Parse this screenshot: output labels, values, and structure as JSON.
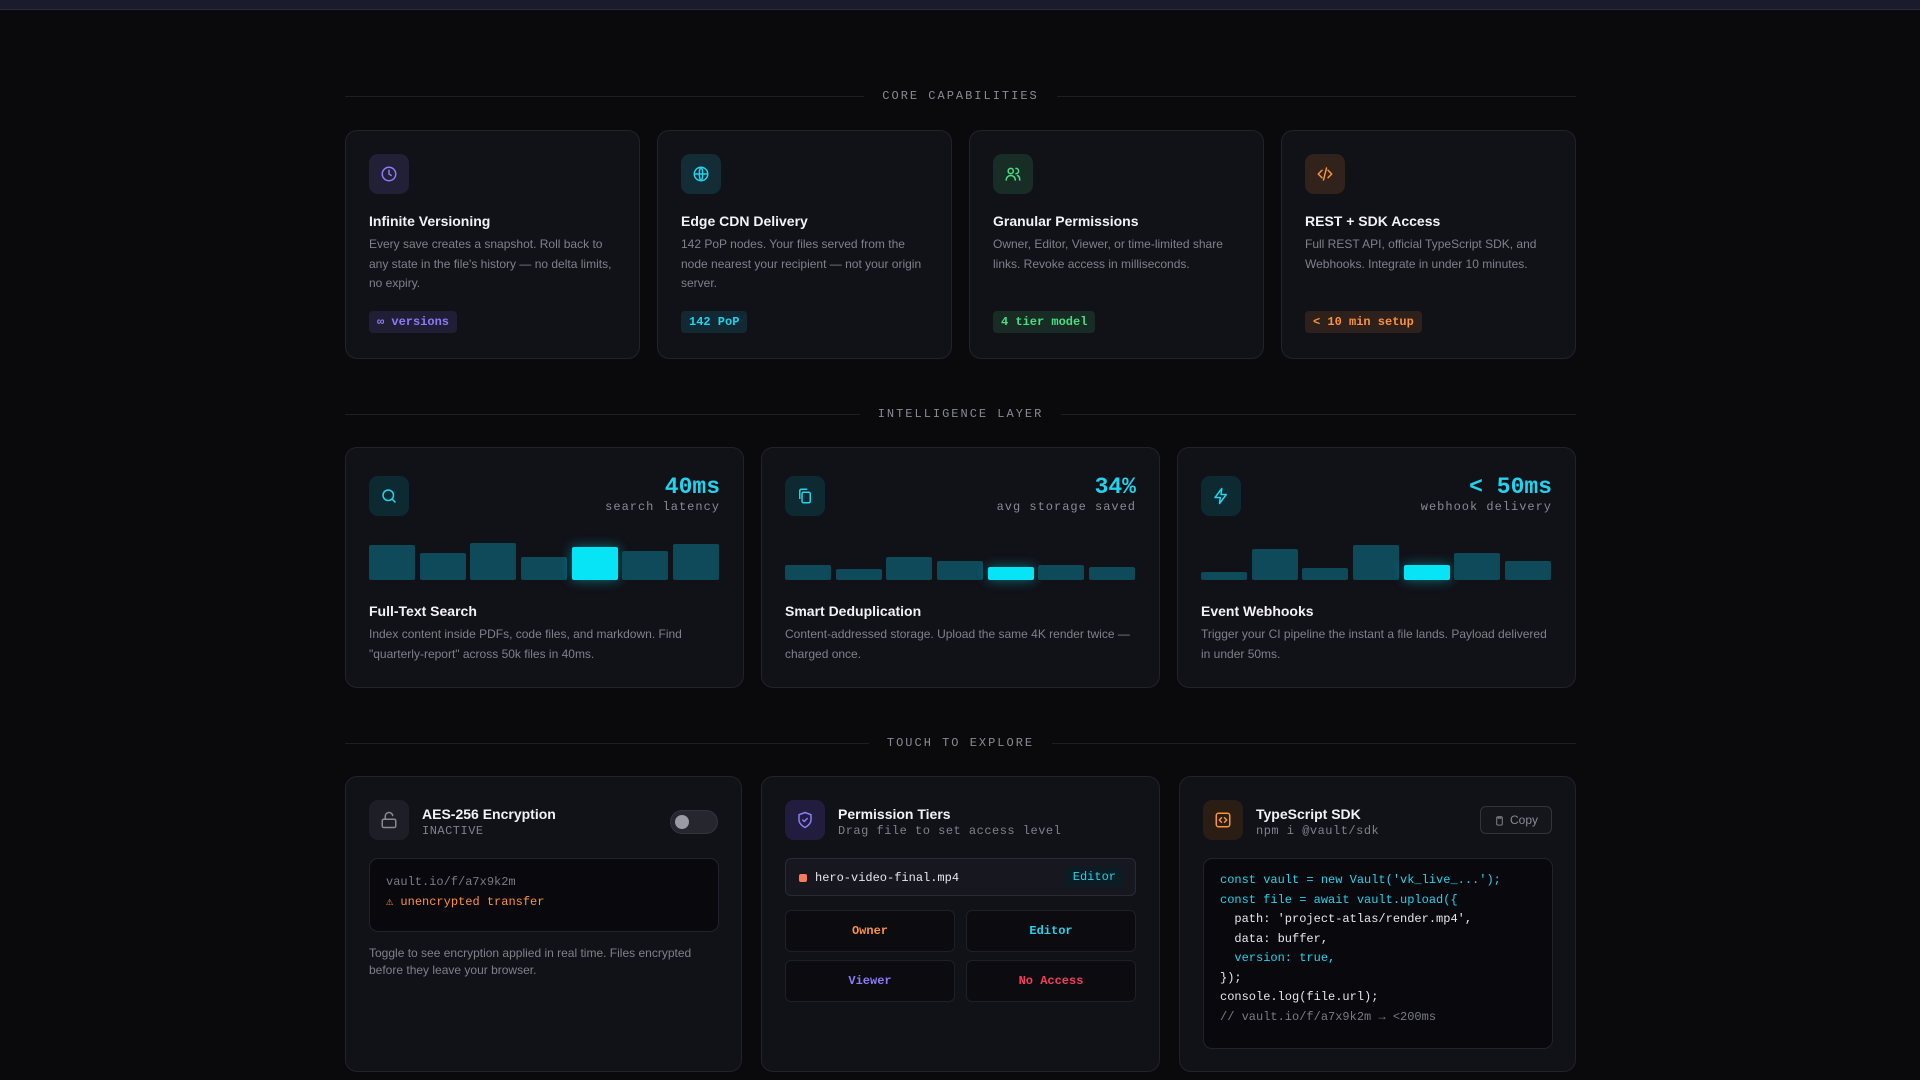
{
  "sections": {
    "core": "CORE CAPABILITIES",
    "intelligence": "INTELLIGENCE LAYER",
    "explore": "TOUCH TO EXPLORE"
  },
  "core_cards": [
    {
      "icon": "clock-icon",
      "title": "Infinite Versioning",
      "desc": "Every save creates a snapshot. Roll back to any state in the file's history — no delta limits, no expiry.",
      "badge": "∞ versions",
      "color": "#8b7cf6"
    },
    {
      "icon": "globe-icon",
      "title": "Edge CDN Delivery",
      "desc": "142 PoP nodes. Your files served from the node nearest your recipient — not your origin server.",
      "badge": "142 PoP",
      "color": "#22d3ee"
    },
    {
      "icon": "users-icon",
      "title": "Granular Permissions",
      "desc": "Owner, Editor, Viewer, or time-limited share links. Revoke access in milliseconds.",
      "badge": "4 tier model",
      "color": "#4ade80"
    },
    {
      "icon": "code-icon",
      "title": "REST + SDK Access",
      "desc": "Full REST API, official TypeScript SDK, and Webhooks. Integrate in under 10 minutes.",
      "badge": "< 10 min setup",
      "color": "#fb923c"
    }
  ],
  "intel_cards": [
    {
      "icon": "search-icon",
      "value": "40ms",
      "sub": "search latency",
      "title": "Full-Text Search",
      "desc": "Index content inside PDFs, code files, and markdown. Find \"quarterly-report\" across 50k files in 40ms.",
      "bars": [
        0.8,
        0.62,
        0.84,
        0.53,
        0.75,
        0.67,
        0.82
      ],
      "active": 4
    },
    {
      "icon": "copy-icon",
      "value": "34%",
      "sub": "avg storage saved",
      "title": "Smart Deduplication",
      "desc": "Content-addressed storage. Upload the same 4K render twice — charged once.",
      "bars": [
        0.35,
        0.26,
        0.53,
        0.44,
        0.3,
        0.35,
        0.3
      ],
      "active": 4
    },
    {
      "icon": "bolt-icon",
      "value": "< 50ms",
      "sub": "webhook delivery",
      "title": "Event Webhooks",
      "desc": "Trigger your CI pipeline the instant a file lands. Payload delivered in under 50ms.",
      "bars": [
        0.18,
        0.71,
        0.27,
        0.8,
        0.35,
        0.62,
        0.44
      ],
      "active": 4
    }
  ],
  "encryption": {
    "title": "AES-256 Encryption",
    "status": "INACTIVE",
    "url": "vault.io/f/a7x9k2m",
    "warning": "⚠ unencrypted transfer",
    "desc": "Toggle to see encryption applied in real time. Files encrypted before they leave your browser."
  },
  "permissions": {
    "title": "Permission Tiers",
    "caption": "Drag file to set access level",
    "file": "hero-video-final.mp4",
    "file_role": "Editor",
    "tiers": [
      {
        "label": "Owner",
        "color": "#fb923c"
      },
      {
        "label": "Editor",
        "color": "#22d3ee"
      },
      {
        "label": "Viewer",
        "color": "#8b7cf6"
      },
      {
        "label": "No Access",
        "color": "#f43f5e"
      }
    ]
  },
  "sdk": {
    "title": "TypeScript SDK",
    "caption": "npm i @vault/sdk",
    "copy_label": "Copy",
    "code": [
      {
        "text": "const vault = new Vault('vk_live_...');",
        "color": "#22d3ee"
      },
      {
        "text": "const file = await vault.upload({",
        "color": "#22d3ee"
      },
      {
        "text": "  path: 'project-atlas/render.mp4',",
        "color": "#e6e6ec"
      },
      {
        "text": "  data: buffer,",
        "color": "#e6e6ec"
      },
      {
        "text": "  version: true,",
        "color": "#22d3ee"
      },
      {
        "text": "});",
        "color": "#e6e6ec"
      },
      {
        "text": "console.log(file.url);",
        "color": "#e6e6ec"
      },
      {
        "text": "// vault.io/f/a7x9k2m → <200ms",
        "color": "#7a7a86"
      }
    ]
  }
}
